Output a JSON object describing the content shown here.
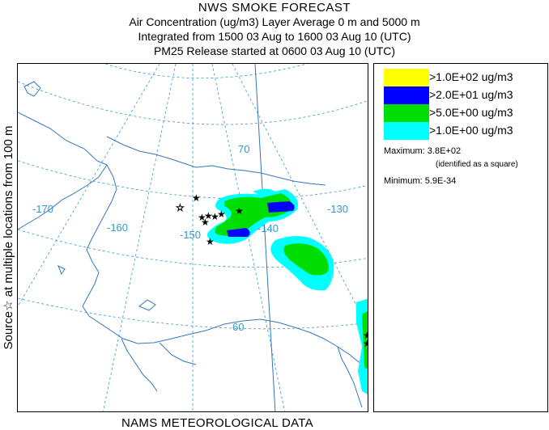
{
  "header": {
    "title": "NWS SMOKE FORECAST",
    "line1": "Air Concentration (ug/m3) Layer Average    0 m and  5000 m",
    "line2": "Integrated from 1500 03 Aug to 1600 03 Aug 10 (UTC)",
    "line3": "PM25 Release started at 0600 03 Aug 10 (UTC)"
  },
  "side_label": "Source☆ at multiple locations  from   100 m",
  "footer": "NAMS METEOROLOGICAL DATA",
  "legend": {
    "items": [
      {
        "label": ">1.0E+02 ug/m3",
        "color": "#ffff00"
      },
      {
        "label": ">2.0E+01 ug/m3",
        "color": "#0000ff"
      },
      {
        "label": ">5.0E+00 ug/m3",
        "color": "#00dd00"
      },
      {
        "label": ">1.0E+00 ug/m3",
        "color": "#00ffff"
      }
    ],
    "maximum_label": "Maximum:",
    "maximum_value": "3.8E+02",
    "maximum_note": "(identified as a square)",
    "minimum_label": "Minimum:",
    "minimum_value": "5.9E-34"
  },
  "map": {
    "graticule_color": "#3399cc",
    "coast_color": "#3377bb",
    "labels": {
      "lon_170": "-170",
      "lon_160": "-160",
      "lon_150": "-150",
      "lon_140": "-140",
      "lon_130": "-130",
      "lat_70": "70",
      "lat_60": "60"
    }
  }
}
